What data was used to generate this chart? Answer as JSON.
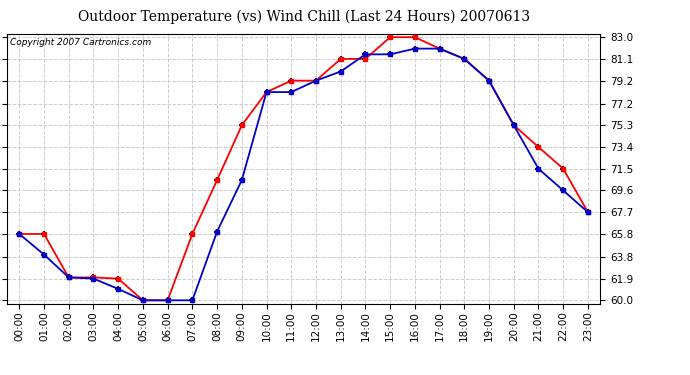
{
  "title": "Outdoor Temperature (vs) Wind Chill (Last 24 Hours) 20070613",
  "copyright": "Copyright 2007 Cartronics.com",
  "hours": [
    "00:00",
    "01:00",
    "02:00",
    "03:00",
    "04:00",
    "05:00",
    "06:00",
    "07:00",
    "08:00",
    "09:00",
    "10:00",
    "11:00",
    "12:00",
    "13:00",
    "14:00",
    "15:00",
    "16:00",
    "17:00",
    "18:00",
    "19:00",
    "20:00",
    "21:00",
    "22:00",
    "23:00"
  ],
  "temp": [
    65.8,
    65.8,
    62.0,
    62.0,
    61.9,
    60.0,
    60.0,
    65.8,
    70.5,
    75.3,
    78.2,
    79.2,
    79.2,
    81.1,
    81.1,
    83.0,
    83.0,
    82.0,
    81.1,
    79.2,
    75.3,
    73.4,
    71.5,
    67.7
  ],
  "windchill": [
    65.8,
    64.0,
    62.0,
    61.9,
    61.0,
    60.0,
    60.0,
    60.0,
    66.0,
    70.5,
    78.2,
    78.2,
    79.2,
    80.0,
    81.5,
    81.5,
    82.0,
    82.0,
    81.1,
    79.2,
    75.3,
    71.5,
    69.6,
    67.7
  ],
  "ymin": 60.0,
  "ymax": 83.0,
  "yticks": [
    60.0,
    61.9,
    63.8,
    65.8,
    67.7,
    69.6,
    71.5,
    73.4,
    75.3,
    77.2,
    79.2,
    81.1,
    83.0
  ],
  "temp_color": "#ff0000",
  "windchill_color": "#0000cc",
  "bg_color": "#ffffff",
  "grid_color": "#cccccc",
  "title_fontsize": 10,
  "copyright_fontsize": 6.5,
  "tick_fontsize": 7.5
}
